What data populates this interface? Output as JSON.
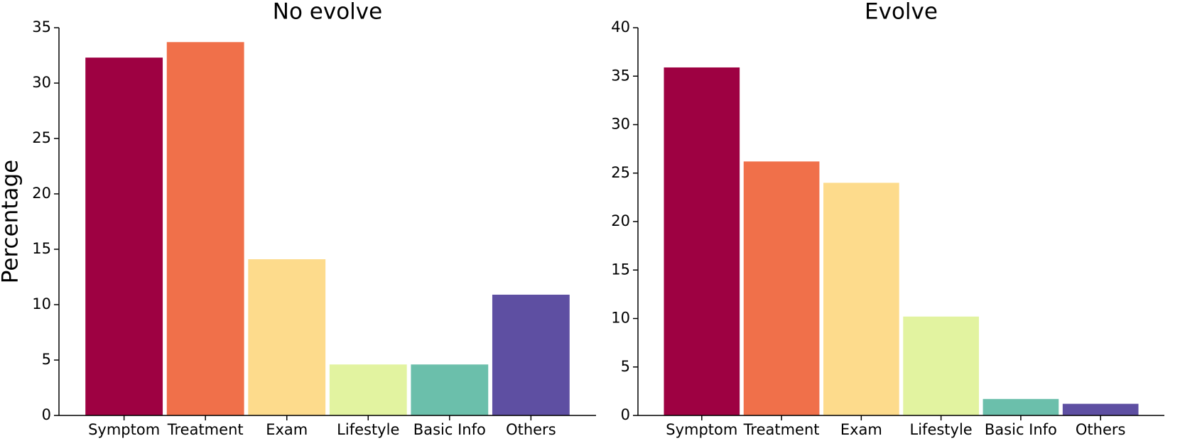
{
  "chart_data": [
    {
      "type": "bar",
      "title": "No evolve",
      "y_label": "Percentage",
      "categories": [
        "Symptom",
        "Treatment",
        "Exam",
        "Lifestyle",
        "Basic Info",
        "Others"
      ],
      "values": [
        32.3,
        33.7,
        14.1,
        4.6,
        4.6,
        10.9
      ],
      "colors": [
        "#9e0142",
        "#f0704a",
        "#fddb8c",
        "#e2f3a0",
        "#6bbfab",
        "#5e4fa2"
      ],
      "ylim": [
        0,
        35
      ],
      "yticks": [
        0,
        5,
        10,
        15,
        20,
        25,
        30,
        35
      ]
    },
    {
      "type": "bar",
      "title": "Evolve",
      "categories": [
        "Symptom",
        "Treatment",
        "Exam",
        "Lifestyle",
        "Basic Info",
        "Others"
      ],
      "values": [
        35.9,
        26.2,
        24.0,
        10.2,
        1.7,
        1.2
      ],
      "colors": [
        "#9e0142",
        "#f0704a",
        "#fddb8c",
        "#e2f3a0",
        "#6bbfab",
        "#5e4fa2"
      ],
      "ylim": [
        0,
        40
      ],
      "yticks": [
        0,
        5,
        10,
        15,
        20,
        25,
        30,
        35,
        40
      ]
    }
  ]
}
